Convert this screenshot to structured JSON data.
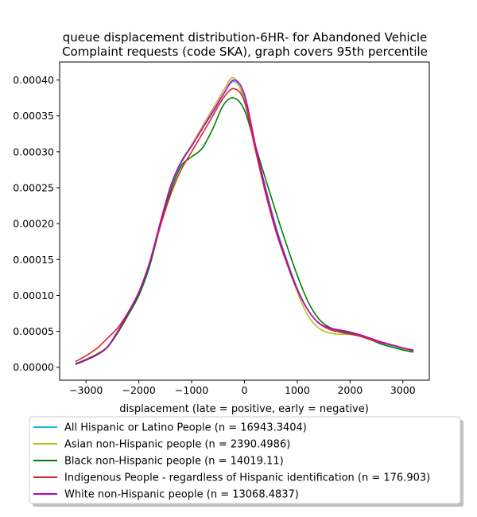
{
  "chart_data": {
    "type": "line",
    "title": "queue displacement distribution-6HR-  for Abandoned Vehicle\nComplaint  requests (code SKA), graph covers 95th percentile",
    "xlabel": "displacement (late = positive, early = negative)",
    "ylabel": "",
    "xlim": [
      -3500,
      3500
    ],
    "ylim": [
      -1.8e-05,
      0.000425
    ],
    "x_ticks": [
      -3000,
      -2000,
      -1000,
      0,
      1000,
      2000,
      3000
    ],
    "x_tick_labels": [
      "−3000",
      "−2000",
      "−1000",
      "0",
      "1000",
      "2000",
      "3000"
    ],
    "y_ticks": [
      0,
      5e-05,
      0.0001,
      0.00015,
      0.0002,
      0.00025,
      0.0003,
      0.00035,
      0.0004
    ],
    "y_tick_labels": [
      "0.00000",
      "0.00005",
      "0.00010",
      "0.00015",
      "0.00020",
      "0.00025",
      "0.00030",
      "0.00035",
      "0.00040"
    ],
    "grid": false,
    "legend_position": "below-plot",
    "x": [
      -3200,
      -3000,
      -2800,
      -2600,
      -2400,
      -2200,
      -2000,
      -1800,
      -1600,
      -1400,
      -1200,
      -1000,
      -800,
      -600,
      -400,
      -200,
      0,
      200,
      400,
      600,
      800,
      1000,
      1200,
      1400,
      1600,
      1800,
      2000,
      2200,
      2400,
      2600,
      2800,
      3000,
      3200
    ],
    "series": [
      {
        "name": "All Hispanic or Latino People (n = 16943.3404)",
        "color": "#17becf",
        "values": [
          4e-06,
          1e-05,
          1.7e-05,
          2.7e-05,
          4.8e-05,
          7.4e-05,
          0.0001,
          0.00014,
          0.000198,
          0.00025,
          0.000284,
          0.000308,
          0.000332,
          0.000355,
          0.00038,
          0.000398,
          0.000375,
          0.00031,
          0.00025,
          0.000195,
          0.00015,
          0.00011,
          8e-05,
          6.2e-05,
          5.4e-05,
          5e-05,
          4.7e-05,
          4.3e-05,
          3.8e-05,
          3.4e-05,
          3e-05,
          2.6e-05,
          2.3e-05
        ]
      },
      {
        "name": "Asian non-Hispanic people (n = 2390.4986)",
        "color": "#bcbd22",
        "values": [
          4e-06,
          1e-05,
          1.7e-05,
          2.7e-05,
          5e-05,
          7.6e-05,
          0.000102,
          0.000142,
          0.000198,
          0.000252,
          0.000286,
          0.00031,
          0.000335,
          0.00036,
          0.000385,
          0.000403,
          0.00037,
          0.000305,
          0.000245,
          0.00019,
          0.000145,
          0.000105,
          7.2e-05,
          5.5e-05,
          4.8e-05,
          4.6e-05,
          4.6e-05,
          4.4e-05,
          4e-05,
          3.5e-05,
          3.1e-05,
          2.6e-05,
          2.3e-05
        ]
      },
      {
        "name": "Black non-Hispanic people (n = 14019.11)",
        "color": "#008000",
        "values": [
          5e-06,
          1.1e-05,
          1.8e-05,
          2.8e-05,
          4.8e-05,
          7.3e-05,
          0.0001,
          0.00014,
          0.000195,
          0.000245,
          0.00028,
          0.000293,
          0.000305,
          0.000332,
          0.000365,
          0.000375,
          0.000358,
          0.00031,
          0.000262,
          0.000215,
          0.00017,
          0.000128,
          9.2e-05,
          6.8e-05,
          5.6e-05,
          5.1e-05,
          4.8e-05,
          4.3e-05,
          3.8e-05,
          3.2e-05,
          2.8e-05,
          2.4e-05,
          2.1e-05
        ]
      },
      {
        "name": "Indigenous People - regardless of Hispanic identification (n = 176.903)",
        "color": "#d62728",
        "values": [
          8e-06,
          1.6e-05,
          2.6e-05,
          4e-05,
          5.5e-05,
          7.7e-05,
          0.000105,
          0.000145,
          0.000195,
          0.00024,
          0.000275,
          0.0003,
          0.000325,
          0.00035,
          0.000375,
          0.000388,
          0.00037,
          0.000305,
          0.000242,
          0.000188,
          0.000145,
          0.000108,
          8e-05,
          6.2e-05,
          5.3e-05,
          4.9e-05,
          4.6e-05,
          4.3e-05,
          3.8e-05,
          3.4e-05,
          3.1e-05,
          2.7e-05,
          2.4e-05
        ]
      },
      {
        "name": "White non-Hispanic people (n = 13068.4837)",
        "color": "#c000c0",
        "values": [
          4e-06,
          1e-05,
          1.7e-05,
          2.8e-05,
          5e-05,
          7.6e-05,
          0.000104,
          0.000145,
          0.0002,
          0.000252,
          0.000286,
          0.000308,
          0.000332,
          0.000356,
          0.00038,
          0.0004,
          0.00038,
          0.000312,
          0.000248,
          0.000192,
          0.000148,
          0.000108,
          8e-05,
          6.2e-05,
          5.5e-05,
          5.2e-05,
          4.9e-05,
          4.5e-05,
          4e-05,
          3.5e-05,
          3.1e-05,
          2.7e-05,
          2.3e-05
        ]
      }
    ]
  }
}
